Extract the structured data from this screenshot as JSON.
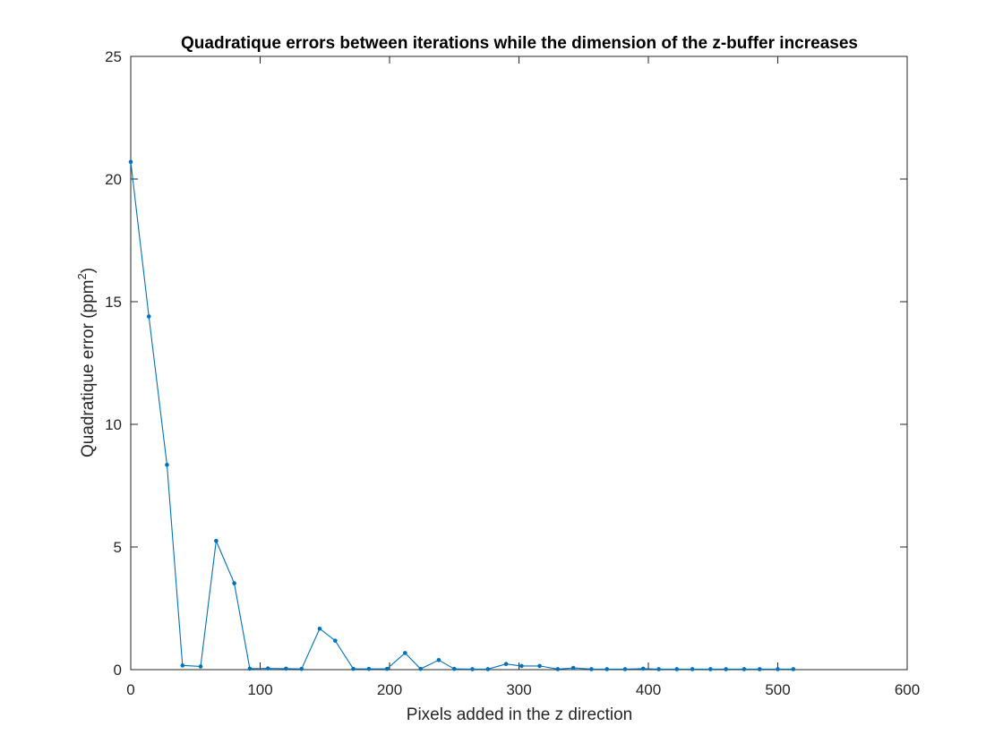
{
  "chart_data": {
    "type": "line",
    "title": "Quadratique errors between iterations while the dimension of the z-buffer increases",
    "xlabel": "Pixels added in the z direction",
    "ylabel": {
      "text": "Quadratique error (ppm",
      "superscript": "2",
      "suffix": ")"
    },
    "xlim": [
      0,
      600
    ],
    "ylim": [
      0,
      25
    ],
    "xticks": [
      0,
      100,
      200,
      300,
      400,
      500,
      600
    ],
    "xtick_labels": [
      "0",
      "100",
      "200",
      "300",
      "400",
      "500",
      "600"
    ],
    "yticks": [
      0,
      5,
      10,
      15,
      20,
      25
    ],
    "ytick_labels": [
      "0",
      "5",
      "10",
      "15",
      "20",
      "25"
    ],
    "grid": false,
    "legend": "none",
    "series": [
      {
        "color": "#0072BD",
        "marker": "dot",
        "x": [
          0,
          14,
          28,
          40,
          54,
          66,
          80,
          92,
          106,
          120,
          132,
          146,
          158,
          172,
          184,
          198,
          212,
          224,
          238,
          250,
          264,
          276,
          290,
          302,
          316,
          330,
          342,
          356,
          368,
          382,
          396,
          408,
          422,
          434,
          448,
          460,
          474,
          486,
          500,
          512
        ],
        "y": [
          20.7,
          14.4,
          8.35,
          0.17,
          0.13,
          5.25,
          3.52,
          0.04,
          0.05,
          0.04,
          0.03,
          1.67,
          1.18,
          0.03,
          0.03,
          0.03,
          0.68,
          0.03,
          0.39,
          0.03,
          0.02,
          0.02,
          0.23,
          0.15,
          0.15,
          0.02,
          0.07,
          0.02,
          0.02,
          0.02,
          0.04,
          0.02,
          0.02,
          0.02,
          0.02,
          0.02,
          0.02,
          0.02,
          0.02,
          0.02
        ]
      }
    ]
  }
}
